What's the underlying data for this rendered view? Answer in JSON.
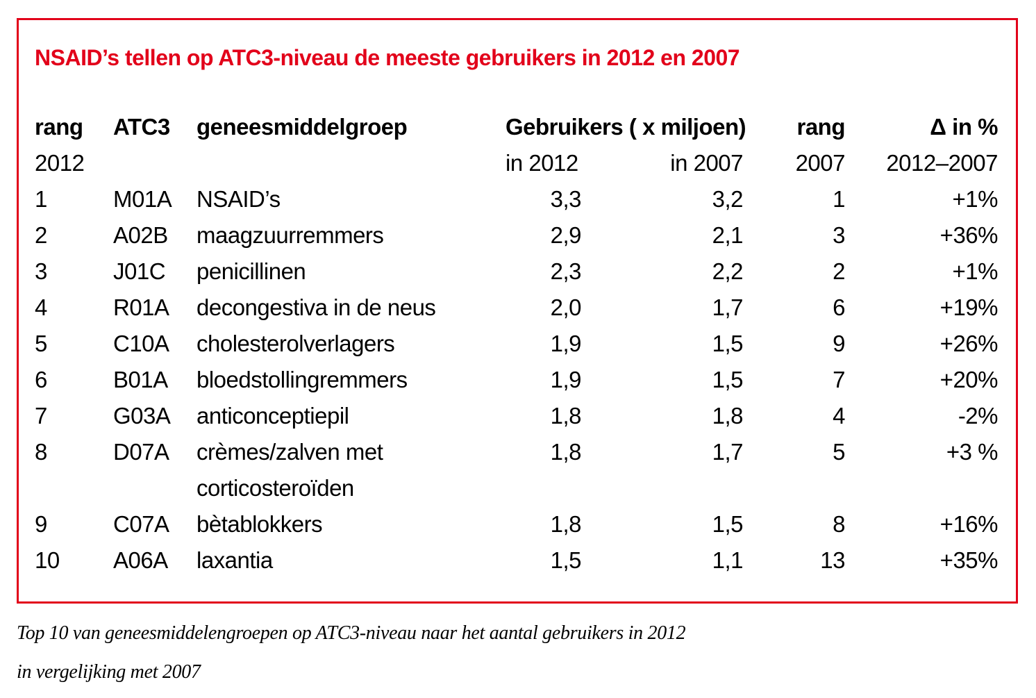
{
  "page": {
    "background": "#ffffff",
    "accent_red": "#e2001a",
    "text_color": "#000000"
  },
  "panel": {
    "title": "NSAID’s tellen op ATC3-niveau de meeste gebruikers in 2012 en 2007"
  },
  "table": {
    "header": {
      "rang_2012_line1": "rang",
      "rang_2012_line2": "2012",
      "atc3": "ATC3",
      "group": "geneesmiddelgroep",
      "gebruikers": "Gebruikers ( x miljoen)",
      "in_2012": "in 2012",
      "in_2007": "in 2007",
      "rang_2007_line1": "rang",
      "rang_2007_line2": "2007",
      "delta_line1": "Δ in %",
      "delta_line2": "2012–2007"
    },
    "rows": [
      {
        "rang_2012": "1",
        "atc3": "M01A",
        "group": "NSAID’s",
        "users_2012": "3,3",
        "users_2007": "3,2",
        "rang_2007": "1",
        "delta": "+1%"
      },
      {
        "rang_2012": "2",
        "atc3": "A02B",
        "group": "maagzuurremmers",
        "users_2012": "2,9",
        "users_2007": "2,1",
        "rang_2007": "3",
        "delta": "+36%"
      },
      {
        "rang_2012": "3",
        "atc3": "J01C",
        "group": "penicillinen",
        "users_2012": "2,3",
        "users_2007": "2,2",
        "rang_2007": "2",
        "delta": "+1%"
      },
      {
        "rang_2012": "4",
        "atc3": "R01A",
        "group": "decongestiva in de neus",
        "users_2012": "2,0",
        "users_2007": "1,7",
        "rang_2007": "6",
        "delta": "+19%"
      },
      {
        "rang_2012": "5",
        "atc3": "C10A",
        "group": "cholesterolverlagers",
        "users_2012": "1,9",
        "users_2007": "1,5",
        "rang_2007": "9",
        "delta": "+26%"
      },
      {
        "rang_2012": "6",
        "atc3": "B01A",
        "group": "bloedstollingremmers",
        "users_2012": "1,9",
        "users_2007": "1,5",
        "rang_2007": "7",
        "delta": "+20%"
      },
      {
        "rang_2012": "7",
        "atc3": "G03A",
        "group": "anticonceptiepil",
        "users_2012": "1,8",
        "users_2007": "1,8",
        "rang_2007": "4",
        "delta": "-2%"
      },
      {
        "rang_2012": "8",
        "atc3": "D07A",
        "group": "crèmes/zalven met\ncorticosteroïden",
        "users_2012": "1,8",
        "users_2007": "1,7",
        "rang_2007": "5",
        "delta": "+3 %"
      },
      {
        "rang_2012": "9",
        "atc3": "C07A",
        "group": "bètablokkers",
        "users_2012": "1,8",
        "users_2007": "1,5",
        "rang_2007": "8",
        "delta": "+16%"
      },
      {
        "rang_2012": "10",
        "atc3": "A06A",
        "group": "laxantia",
        "users_2012": "1,5",
        "users_2007": "1,1",
        "rang_2007": "13",
        "delta": "+35%"
      }
    ]
  },
  "caption": {
    "line1": "Top 10 van geneesmiddelengroepen op ATC3-niveau naar het aantal gebruikers in 2012",
    "line2": "in vergelijking met 2007"
  },
  "chart_data": {
    "type": "table",
    "title": "NSAID’s tellen op ATC3-niveau de meeste gebruikers in 2012 en 2007",
    "columns": [
      "rang 2012",
      "ATC3",
      "geneesmiddelgroep",
      "Gebruikers (x miljoen) in 2012",
      "Gebruikers (x miljoen) in 2007",
      "rang 2007",
      "Δ in % 2012–2007"
    ],
    "rows": [
      [
        "1",
        "M01A",
        "NSAID’s",
        "3,3",
        "3,2",
        "1",
        "+1%"
      ],
      [
        "2",
        "A02B",
        "maagzuurremmers",
        "2,9",
        "2,1",
        "3",
        "+36%"
      ],
      [
        "3",
        "J01C",
        "penicillinen",
        "2,3",
        "2,2",
        "2",
        "+1%"
      ],
      [
        "4",
        "R01A",
        "decongestiva in de neus",
        "2,0",
        "1,7",
        "6",
        "+19%"
      ],
      [
        "5",
        "C10A",
        "cholesterolverlagers",
        "1,9",
        "1,5",
        "9",
        "+26%"
      ],
      [
        "6",
        "B01A",
        "bloedstollingremmers",
        "1,9",
        "1,5",
        "7",
        "+20%"
      ],
      [
        "7",
        "G03A",
        "anticonceptiepil",
        "1,8",
        "1,8",
        "4",
        "-2%"
      ],
      [
        "8",
        "D07A",
        "crèmes/zalven met corticosteroïden",
        "1,8",
        "1,7",
        "5",
        "+3 %"
      ],
      [
        "9",
        "C07A",
        "bètablokkers",
        "1,8",
        "1,5",
        "8",
        "+16%"
      ],
      [
        "10",
        "A06A",
        "laxantia",
        "1,5",
        "1,1",
        "13",
        "+35%"
      ]
    ]
  }
}
